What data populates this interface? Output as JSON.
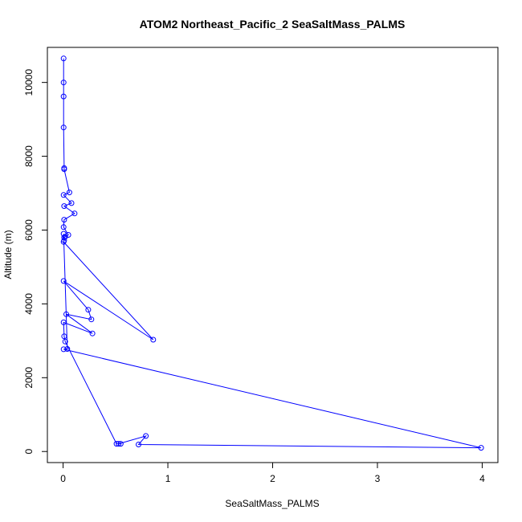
{
  "chart_data": {
    "type": "line",
    "title": "ATOM2 Northeast_Pacific_2 SeaSaltMass_PALMS",
    "xlabel": "SeaSaltMass_PALMS",
    "ylabel": "Altitude (m)",
    "xlim": [
      -0.15,
      4.15
    ],
    "ylim": [
      -300,
      10950
    ],
    "x_ticks": [
      0,
      1,
      2,
      3,
      4
    ],
    "x_tick_labels": [
      "0",
      "1",
      "2",
      "3",
      "4"
    ],
    "y_ticks": [
      0,
      2000,
      4000,
      6000,
      8000,
      10000
    ],
    "y_tick_labels": [
      "0",
      "2000",
      "4000",
      "6000",
      "8000",
      "10000"
    ],
    "grid": false,
    "legend": "none",
    "series": [
      {
        "color": "#0000ff",
        "marker": "open-circle",
        "points": [
          [
            0.005,
            10650
          ],
          [
            0.005,
            10000
          ],
          [
            0.005,
            9620
          ],
          [
            0.005,
            8780
          ],
          [
            0.01,
            7680
          ],
          [
            0.01,
            7650
          ],
          [
            0.06,
            7020
          ],
          [
            0.005,
            6950
          ],
          [
            0.08,
            6730
          ],
          [
            0.01,
            6650
          ],
          [
            0.11,
            6450
          ],
          [
            0.01,
            6280
          ],
          [
            0.005,
            6080
          ],
          [
            0.05,
            5870
          ],
          [
            0.02,
            5820
          ],
          [
            0.01,
            5800
          ],
          [
            0.01,
            5720
          ],
          [
            0.005,
            5680
          ],
          [
            0.86,
            3030
          ],
          [
            0.005,
            4620
          ],
          [
            0.24,
            3840
          ],
          [
            0.27,
            3580
          ],
          [
            0.03,
            3720
          ],
          [
            0.28,
            3200
          ],
          [
            0.005,
            3500
          ],
          [
            0.01,
            3120
          ],
          [
            0.02,
            2980
          ],
          [
            0.51,
            210
          ],
          [
            0.55,
            210
          ],
          [
            0.53,
            210
          ],
          [
            0.79,
            420
          ],
          [
            0.72,
            190
          ],
          [
            3.99,
            100
          ],
          [
            0.005,
            2770
          ],
          [
            0.04,
            2780
          ],
          [
            0.005,
            5900
          ]
        ]
      }
    ]
  }
}
